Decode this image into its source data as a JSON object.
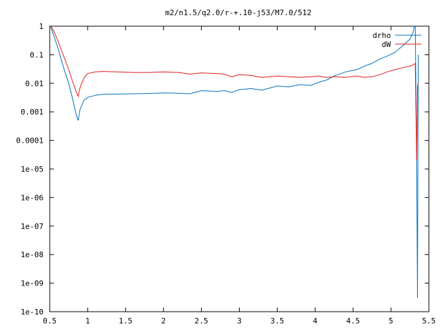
{
  "chart_data": {
    "type": "line",
    "title": "m2/n1.5/q2.0/r-+.10-j53/M7.0/512",
    "xlabel": "",
    "ylabel": "",
    "xlim": [
      0.5,
      5.5
    ],
    "ylim": [
      1e-10,
      1
    ],
    "yscale": "log",
    "grid": false,
    "legend_position": "top-right",
    "x_ticks": [
      0.5,
      1,
      1.5,
      2,
      2.5,
      3,
      3.5,
      4,
      4.5,
      5,
      5.5
    ],
    "x_tick_labels": [
      "0.5",
      "1",
      "1.5",
      "2",
      "2.5",
      "3",
      "3.5",
      "4",
      "4.5",
      "5",
      "5.5"
    ],
    "y_ticks": [
      1,
      0.1,
      0.01,
      0.001,
      0.0001,
      1e-05,
      1e-06,
      1e-07,
      1e-08,
      1e-09,
      1e-10
    ],
    "y_tick_labels": [
      "1",
      "0.1",
      "0.01",
      "0.001",
      "0.0001",
      "1e-05",
      "1e-06",
      "1e-07",
      "1e-08",
      "1e-09",
      "1e-10"
    ],
    "series": [
      {
        "name": "drho",
        "color": "#0072bd",
        "x": [
          0.5,
          0.55,
          0.6,
          0.65,
          0.7,
          0.75,
          0.8,
          0.85,
          0.875,
          0.9,
          0.95,
          1.0,
          1.1,
          1.2,
          1.4,
          1.6,
          1.8,
          2.0,
          2.2,
          2.35,
          2.5,
          2.7,
          2.8,
          2.9,
          3.0,
          3.15,
          3.3,
          3.5,
          3.65,
          3.8,
          3.95,
          4.05,
          4.15,
          4.25,
          4.4,
          4.55,
          4.65,
          4.75,
          4.85,
          4.95,
          5.05,
          5.15,
          5.25,
          5.3,
          5.32,
          5.34,
          5.35,
          5.36
        ],
        "y": [
          1.2,
          0.5,
          0.2,
          0.07,
          0.025,
          0.01,
          0.003,
          0.0008,
          0.0005,
          0.0012,
          0.0025,
          0.0032,
          0.0038,
          0.0041,
          0.0042,
          0.0043,
          0.0044,
          0.0046,
          0.0045,
          0.0043,
          0.0055,
          0.0052,
          0.0055,
          0.0048,
          0.006,
          0.0065,
          0.0058,
          0.008,
          0.0075,
          0.009,
          0.0085,
          0.011,
          0.013,
          0.018,
          0.025,
          0.03,
          0.04,
          0.05,
          0.07,
          0.09,
          0.12,
          0.2,
          0.35,
          0.7,
          1.5,
          1e-05,
          3e-10,
          0.1
        ]
      },
      {
        "name": "dW",
        "color": "#e31a1c",
        "x": [
          0.5,
          0.55,
          0.6,
          0.65,
          0.7,
          0.75,
          0.8,
          0.85,
          0.875,
          0.9,
          0.95,
          1.0,
          1.1,
          1.2,
          1.4,
          1.6,
          1.8,
          2.0,
          2.2,
          2.35,
          2.5,
          2.7,
          2.8,
          2.9,
          3.0,
          3.15,
          3.3,
          3.5,
          3.65,
          3.8,
          3.95,
          4.05,
          4.15,
          4.25,
          4.4,
          4.55,
          4.65,
          4.75,
          4.85,
          4.95,
          5.05,
          5.15,
          5.25,
          5.3,
          5.32,
          5.34,
          5.35,
          5.36
        ],
        "y": [
          1.2,
          0.7,
          0.35,
          0.15,
          0.07,
          0.03,
          0.012,
          0.005,
          0.0035,
          0.007,
          0.015,
          0.022,
          0.025,
          0.026,
          0.025,
          0.024,
          0.024,
          0.025,
          0.024,
          0.021,
          0.023,
          0.022,
          0.021,
          0.017,
          0.02,
          0.019,
          0.016,
          0.018,
          0.017,
          0.016,
          0.017,
          0.018,
          0.016,
          0.017,
          0.016,
          0.018,
          0.016,
          0.017,
          0.02,
          0.025,
          0.03,
          0.035,
          0.04,
          0.045,
          0.05,
          2e-05,
          0.008,
          0.01
        ]
      }
    ]
  }
}
